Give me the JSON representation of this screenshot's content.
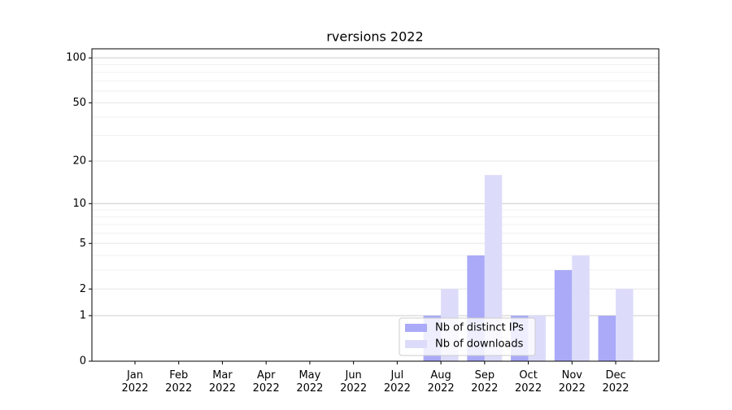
{
  "chart_data": {
    "type": "bar",
    "title": "rversions 2022",
    "categories": [
      "Jan 2022",
      "Feb 2022",
      "Mar 2022",
      "Apr 2022",
      "May 2022",
      "Jun 2022",
      "Jul 2022",
      "Aug 2022",
      "Sep 2022",
      "Oct 2022",
      "Nov 2022",
      "Dec 2022"
    ],
    "series": [
      {
        "name": "Nb of distinct IPs",
        "color": "#aaaaf8",
        "values": [
          0,
          0,
          0,
          0,
          0,
          0,
          0,
          1,
          4,
          1,
          3,
          1
        ]
      },
      {
        "name": "Nb of downloads",
        "color": "#dcdcfa",
        "values": [
          0,
          0,
          0,
          0,
          0,
          0,
          0,
          2,
          16,
          1,
          4,
          2
        ]
      }
    ],
    "y_scale": "log1p",
    "ylim": [
      0,
      115
    ],
    "yticks": [
      0,
      1,
      2,
      5,
      10,
      20,
      50,
      100
    ],
    "minor_yticks": [
      3,
      4,
      6,
      7,
      8,
      9,
      30,
      40,
      60,
      70,
      80,
      90
    ],
    "grid": true,
    "legend_position": "lower center"
  }
}
